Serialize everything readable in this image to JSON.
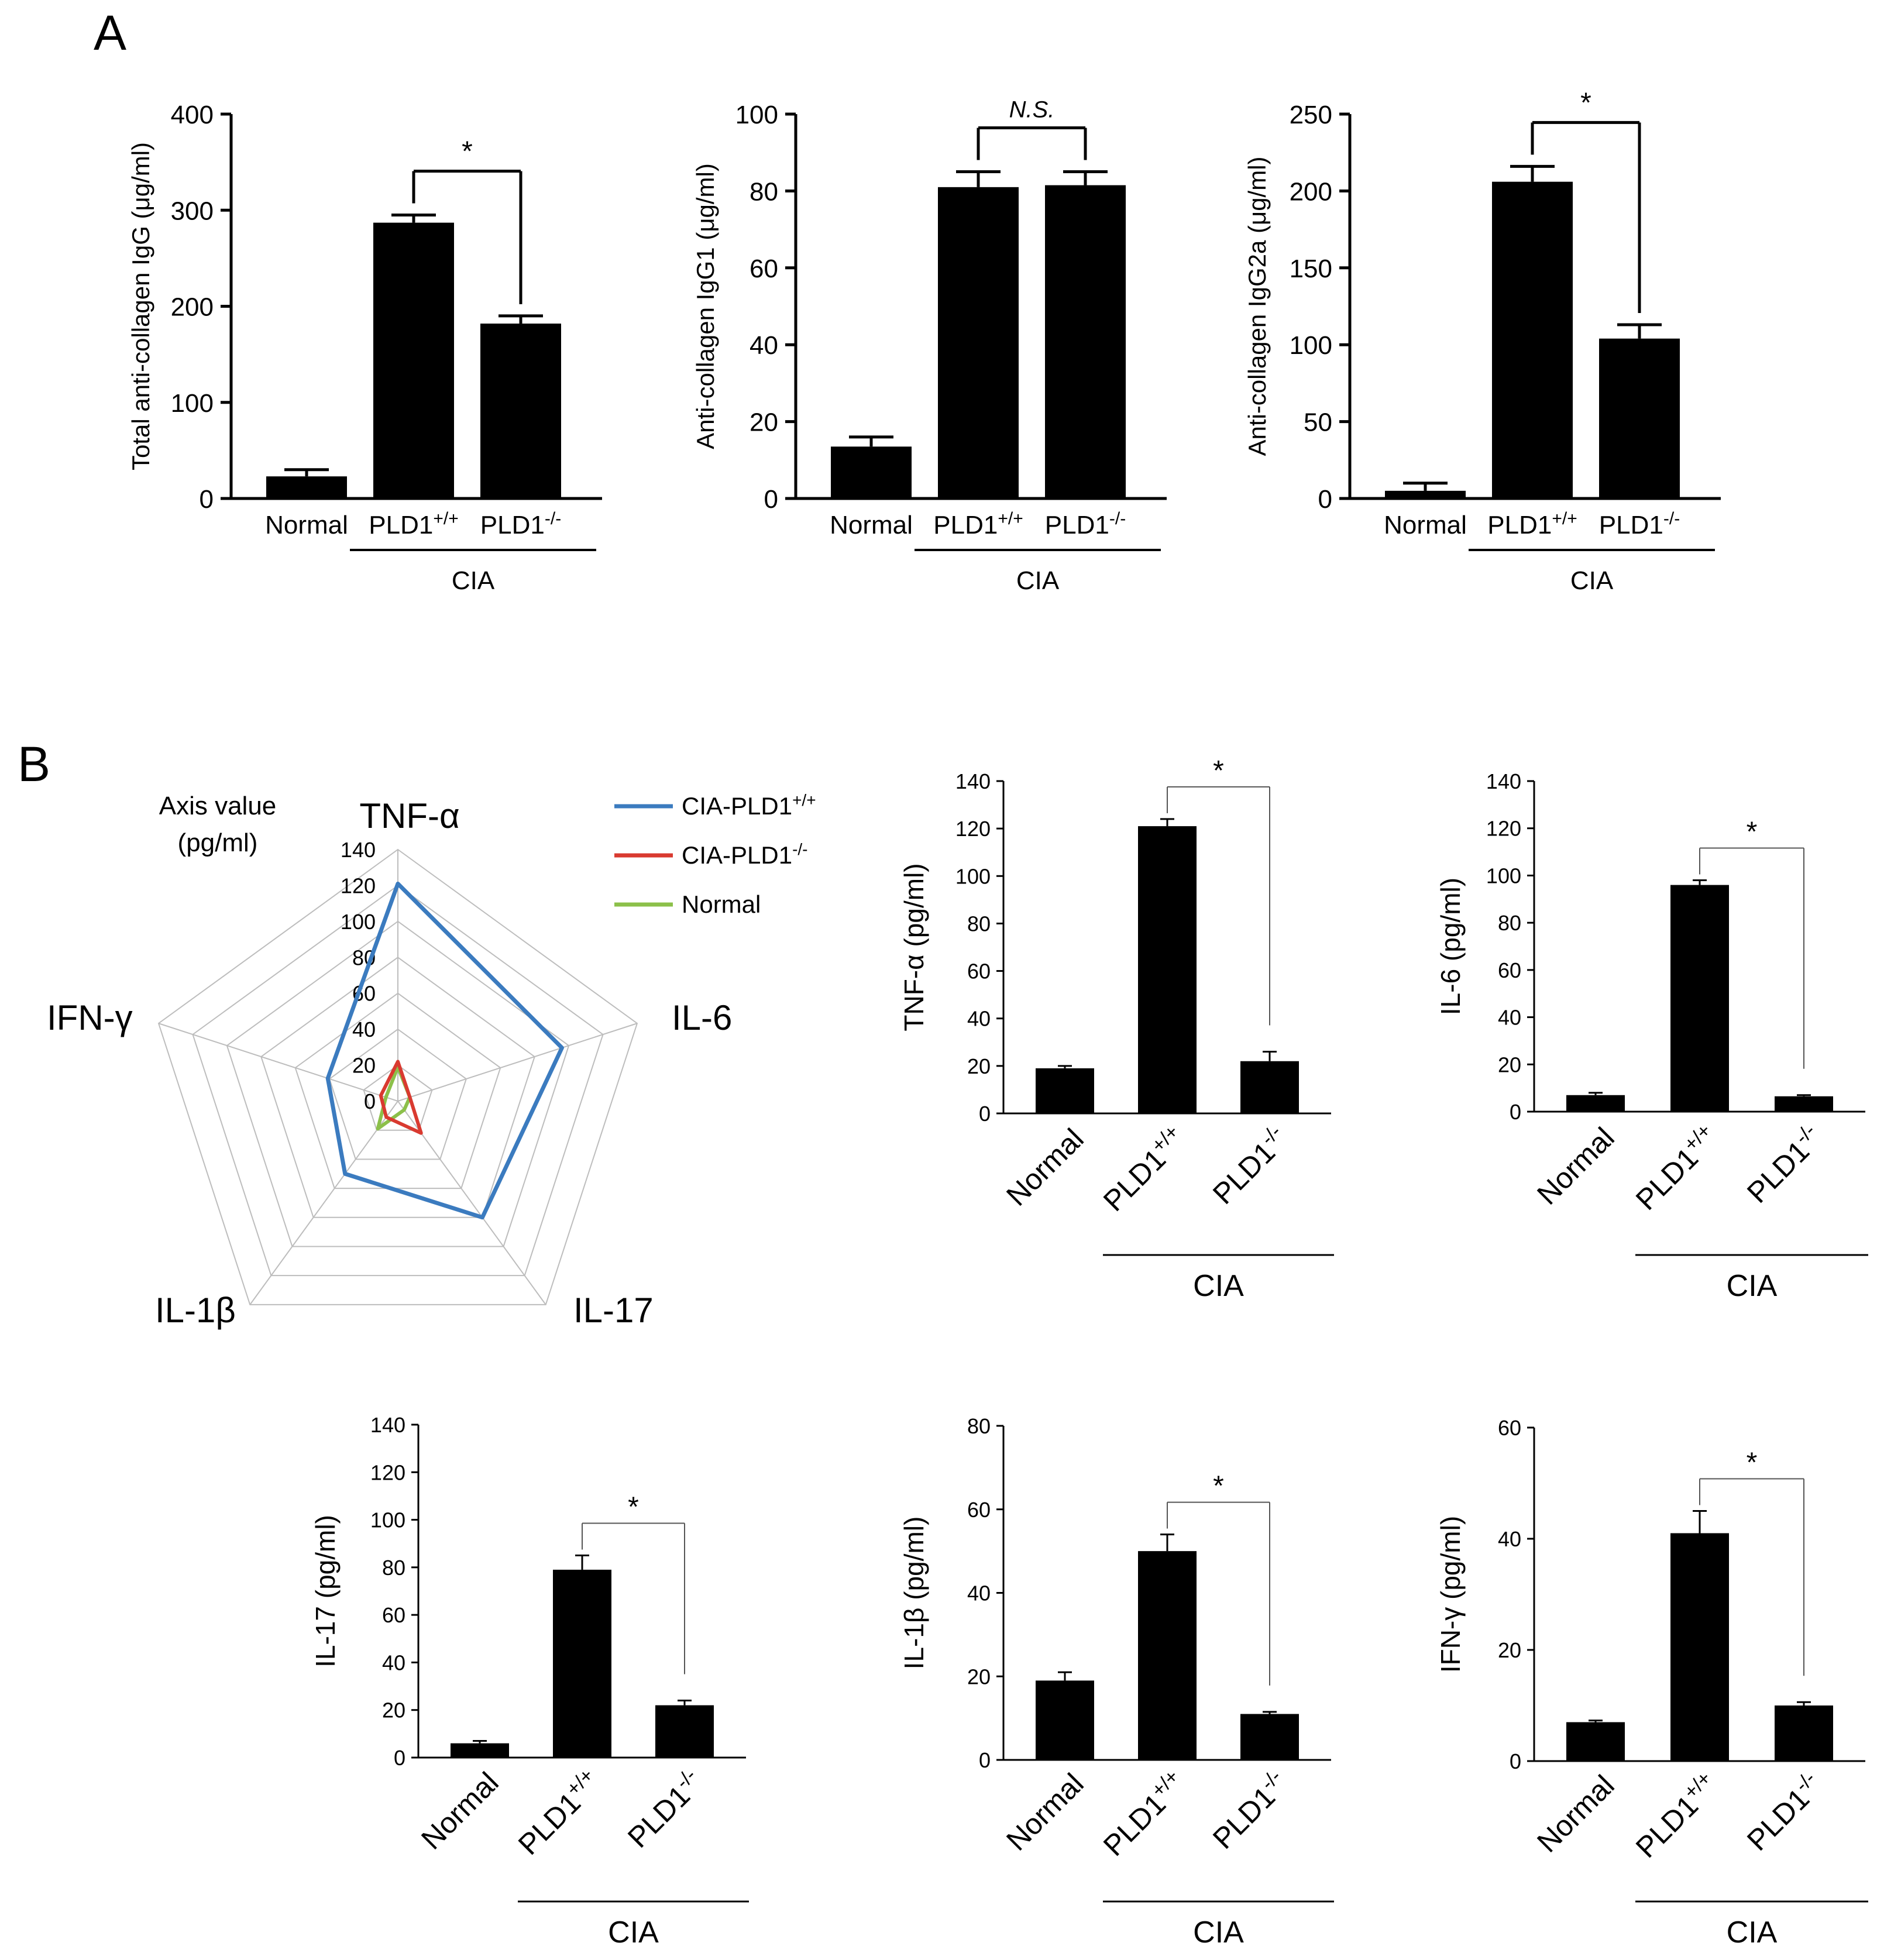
{
  "panels": {
    "a": {
      "letter": "A"
    },
    "b": {
      "letter": "B"
    }
  },
  "chart_data": [
    {
      "id": "total-igg",
      "type": "bar",
      "panel": "A",
      "ylabel": "Total anti-collagen IgG (μg/ml)",
      "ylim": [
        0,
        400
      ],
      "yticks": [
        0,
        100,
        200,
        300,
        400
      ],
      "categories": [
        "Normal",
        "PLD1+/+",
        "PLD1-/-"
      ],
      "values": [
        23,
        287,
        182
      ],
      "errors": [
        7,
        8,
        8
      ],
      "group_label": "CIA",
      "significance": "*"
    },
    {
      "id": "igg1",
      "type": "bar",
      "panel": "A",
      "ylabel": "Anti-collagen IgG1 (μg/ml)",
      "ylim": [
        0,
        100
      ],
      "yticks": [
        0,
        20,
        40,
        60,
        80,
        100
      ],
      "categories": [
        "Normal",
        "PLD1+/+",
        "PLD1-/-"
      ],
      "values": [
        13.5,
        81,
        81.5
      ],
      "errors": [
        2.5,
        4,
        3.5
      ],
      "group_label": "CIA",
      "significance": "N.S."
    },
    {
      "id": "igg2a",
      "type": "bar",
      "panel": "A",
      "ylabel": "Anti-collagen IgG2a (μg/ml)",
      "ylim": [
        0,
        250
      ],
      "yticks": [
        0,
        50,
        100,
        150,
        200,
        250
      ],
      "categories": [
        "Normal",
        "PLD1+/+",
        "PLD1-/-"
      ],
      "values": [
        5,
        206,
        104
      ],
      "errors": [
        5,
        10,
        9
      ],
      "group_label": "CIA",
      "significance": "*"
    },
    {
      "id": "radar",
      "type": "radar",
      "panel": "B",
      "axis_title": [
        "Axis value",
        "(pg/ml)"
      ],
      "axes": [
        "TNF-α",
        "IL-6",
        "IL-17",
        "IL-1β",
        "IFN-γ"
      ],
      "rmax": 140,
      "ticks": [
        0,
        20,
        40,
        60,
        80,
        100,
        120,
        140
      ],
      "series": [
        {
          "name": "CIA-PLD1",
          "sup": "+/+",
          "color": "#3b7bbf",
          "values": [
            121,
            96,
            80,
            50,
            41
          ]
        },
        {
          "name": "CIA-PLD1",
          "sup": "-/-",
          "color": "#d93a30",
          "values": [
            22,
            7,
            22,
            11,
            10
          ]
        },
        {
          "name": "Normal",
          "sup": "",
          "color": "#8cc04a",
          "values": [
            19,
            7,
            6,
            19,
            7
          ]
        }
      ]
    },
    {
      "id": "tnf",
      "type": "bar",
      "panel": "B",
      "ylabel": "TNF-α (pg/ml)",
      "ylim": [
        0,
        140
      ],
      "yticks": [
        0,
        20,
        40,
        60,
        80,
        100,
        120,
        140
      ],
      "categories": [
        "Normal",
        "PLD1+/+",
        "PLD1-/-"
      ],
      "values": [
        19,
        121,
        22
      ],
      "errors": [
        1,
        3,
        4
      ],
      "group_label": "CIA",
      "significance": "*"
    },
    {
      "id": "il6",
      "type": "bar",
      "panel": "B",
      "ylabel": "IL-6 (pg/ml)",
      "ylim": [
        0,
        140
      ],
      "yticks": [
        0,
        20,
        40,
        60,
        80,
        100,
        120,
        140
      ],
      "categories": [
        "Normal",
        "PLD1+/+",
        "PLD1-/-"
      ],
      "values": [
        7,
        96,
        6.5
      ],
      "errors": [
        1,
        2,
        0.5
      ],
      "group_label": "CIA",
      "significance": "*"
    },
    {
      "id": "il17",
      "type": "bar",
      "panel": "B",
      "ylabel": "IL-17 (pg/ml)",
      "ylim": [
        0,
        140
      ],
      "yticks": [
        0,
        20,
        40,
        60,
        80,
        100,
        120,
        140
      ],
      "categories": [
        "Normal",
        "PLD1+/+",
        "PLD1-/-"
      ],
      "values": [
        6,
        79,
        22
      ],
      "errors": [
        1,
        6,
        2
      ],
      "group_label": "CIA",
      "significance": "*"
    },
    {
      "id": "il1b",
      "type": "bar",
      "panel": "B",
      "ylabel": "IL-1β (pg/ml)",
      "ylim": [
        0,
        80
      ],
      "yticks": [
        0,
        20,
        40,
        60,
        80
      ],
      "categories": [
        "Normal",
        "PLD1+/+",
        "PLD1-/-"
      ],
      "values": [
        19,
        50,
        11
      ],
      "errors": [
        2,
        4,
        0.5
      ],
      "group_label": "CIA",
      "significance": "*"
    },
    {
      "id": "ifng",
      "type": "bar",
      "panel": "B",
      "ylabel": "IFN-γ (pg/ml)",
      "ylim": [
        0,
        60
      ],
      "yticks": [
        0,
        20,
        40,
        60
      ],
      "categories": [
        "Normal",
        "PLD1+/+",
        "PLD1-/-"
      ],
      "values": [
        7,
        41,
        10
      ],
      "errors": [
        0.3,
        4,
        0.6
      ],
      "group_label": "CIA",
      "significance": "*"
    }
  ]
}
